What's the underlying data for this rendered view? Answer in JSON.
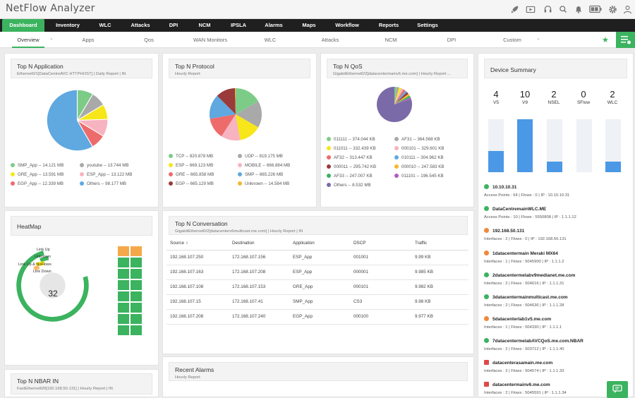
{
  "app": {
    "title": "NetFlow Analyzer"
  },
  "toolbar_icons": [
    "rocket-icon",
    "video-icon",
    "headset-icon",
    "search-icon",
    "bell-icon",
    "battery-icon",
    "gear-icon",
    "user-icon"
  ],
  "nav": [
    "Dashboard",
    "Inventory",
    "WLC",
    "Attacks",
    "DPI",
    "NCM",
    "IPSLA",
    "Alarms",
    "Maps",
    "Workflow",
    "Reports",
    "Settings"
  ],
  "subnav": [
    "Overview",
    "Apps",
    "Qos",
    "WAN Monitors",
    "WLC",
    "Attacks",
    "NCM",
    "DPI",
    "Custom"
  ],
  "subnav_chevron": "⌄",
  "app_panel": {
    "title": "Top N Application",
    "subtitle": "Ethernet0/1[DataCentreAVC HTTPHOST] | Daily Report | IN",
    "legend": [
      {
        "label": "SMP_App -- 14.121 MB",
        "color": "#7ccc87"
      },
      {
        "label": "youtube -- 13.744 MB",
        "color": "#a9a9a9"
      },
      {
        "label": "GRE_App -- 13.591 MB",
        "color": "#f6e61a"
      },
      {
        "label": "ESP_App -- 13.122 MB",
        "color": "#f7b3bf"
      },
      {
        "label": "EGP_App -- 12.339 MB",
        "color": "#ee6b6b"
      },
      {
        "label": "Others -- 98.177 MB",
        "color": "#5fa8e0"
      }
    ]
  },
  "protocol_panel": {
    "title": "Top N Protocol",
    "subtitle": "Hourly Report",
    "legend": [
      {
        "label": "TCP -- 820.878 MB",
        "color": "#7ccc87"
      },
      {
        "label": "UDP -- 819.175 MB",
        "color": "#a9a9a9"
      },
      {
        "label": "ESP -- 669.123 MB",
        "color": "#f6e61a"
      },
      {
        "label": "MOBILE -- 666.884 MB",
        "color": "#f7b3bf"
      },
      {
        "label": "GRE -- 665.858 MB",
        "color": "#ee6b6b"
      },
      {
        "label": "SMP -- 665.226 MB",
        "color": "#5fa8e0"
      },
      {
        "label": "EGP -- 665.129 MB",
        "color": "#9b3a3a"
      },
      {
        "label": "Unknown -- 14.584 MB",
        "color": "#f5b82e"
      }
    ]
  },
  "qos_panel": {
    "title": "Top N QoS",
    "subtitle": "GigabitEthernet0/2[datacentermainv6.me.com] | Hourly Report ...",
    "legend": [
      {
        "label": "011111 -- 374.044 KB",
        "color": "#7ccc87"
      },
      {
        "label": "AF31 -- 364.568 KB",
        "color": "#a9a9a9"
      },
      {
        "label": "011011 -- 332.439 KB",
        "color": "#f6e61a"
      },
      {
        "label": "000101 -- 329.601 KB",
        "color": "#f7b3bf"
      },
      {
        "label": "AF32 -- 313.447 KB",
        "color": "#ee6b6b"
      },
      {
        "label": "010111 -- 304.962 KB",
        "color": "#5fa8e0"
      },
      {
        "label": "000011 -- 295.742 KB",
        "color": "#9b3a3a"
      },
      {
        "label": "000010 -- 247.583 KB",
        "color": "#f5b82e"
      },
      {
        "label": "AF33 -- 247.007 KB",
        "color": "#3bb35f"
      },
      {
        "label": "011101 -- 196.545 KB",
        "color": "#b05cc0"
      },
      {
        "label": "Others -- 8.532 MB",
        "color": "#7b6aa8"
      }
    ]
  },
  "device_summary": {
    "title": "Device Summary",
    "counts": [
      {
        "n": "4",
        "label": "V5",
        "fill": 0.4
      },
      {
        "n": "10",
        "label": "V9",
        "fill": 1.0
      },
      {
        "n": "2",
        "label": "NSEL",
        "fill": 0.2
      },
      {
        "n": "0",
        "label": "SFlow",
        "fill": 0
      },
      {
        "n": "2",
        "label": "WLC",
        "fill": 0.2
      }
    ],
    "devices": [
      {
        "name": "10.10.10.31",
        "info": "Access Points : 64  |  Flows : 0  |  IP : 10.10.10.31",
        "icon": "wlc-icon",
        "color": "#3bb35f"
      },
      {
        "name": "DataCentremainWLC.ME",
        "info": "Access Points : 10  |  Flows : 5550808  |  IP : 1.1.1.12",
        "icon": "wlc-icon",
        "color": "#3bb35f"
      },
      {
        "name": "192.168.50.131",
        "info": "Interfaces : 2  |  Flows : 0  |  IP : 192.168.50.131",
        "icon": "router-icon",
        "color": "#f0883a"
      },
      {
        "name": "1datacentermain Meraki MX64",
        "info": "Interfaces : 1  |  Flows : 5045900  |  IP : 1.1.1.2",
        "icon": "router-icon",
        "color": "#f0883a"
      },
      {
        "name": "2datacentermelabv9medianet.me.com",
        "info": "Interfaces : 2  |  Flows : 504616  |  IP : 1.1.1.31",
        "icon": "wlc-icon",
        "color": "#3bb35f"
      },
      {
        "name": "3datacentermainmulticast.me.com",
        "info": "Interfaces : 2  |  Flows : 504636  |  IP : 1.1.1.28",
        "icon": "wlc-icon",
        "color": "#3bb35f"
      },
      {
        "name": "5datacenterlab1v5.me.com",
        "info": "Interfaces : 1  |  Flows : 504330  |  IP : 1.1.1.1",
        "icon": "router-icon",
        "color": "#f0883a"
      },
      {
        "name": "7datacentermelabAVCQoS.me.com.NBAR",
        "info": "Interfaces : 2  |  Flows : 503712  |  IP : 1.1.1.40",
        "icon": "wlc-icon",
        "color": "#3bb35f"
      },
      {
        "name": "datacenterasamain.me.com",
        "info": "Interfaces : 2  |  Flows : 504574  |  IP : 1.1.1.33",
        "icon": "firewall-icon",
        "color": "#e04848"
      },
      {
        "name": "datacentermainv6.me.com",
        "info": "Interfaces : 2  |  Flows : 5045591  |  IP : 1.1.1.34",
        "icon": "firewall-icon",
        "color": "#e04848"
      }
    ]
  },
  "heatmap": {
    "title": "HeatMap",
    "value": "32",
    "labels": [
      "Link Up",
      "Unknown",
      "Link Up & NoFlows",
      "Link Down"
    ]
  },
  "conversation": {
    "title": "Top N Conversation",
    "subtitle": "GigabitEthernet0/2[datacenterv6multicast.me.com] | Hourly Report | IN",
    "columns": [
      "Source",
      "Destination",
      "Application",
      "DSCP",
      "Traffic"
    ],
    "sort_indicator": "⇕",
    "rows": [
      [
        "192.168.107.250",
        "172.168.107.156",
        "ESP_App",
        "001001",
        "9.99 KB"
      ],
      [
        "192.168.107.163",
        "172.168.107.208",
        "ESP_App",
        "000001",
        "9.985 KB"
      ],
      [
        "192.168.107.108",
        "172.168.107.153",
        "GRE_App",
        "000101",
        "9.982 KB"
      ],
      [
        "192.168.107.15",
        "172.168.107.41",
        "SMP_App",
        "CS3",
        "9.98 KB"
      ],
      [
        "192.168.107.208",
        "172.168.107.240",
        "EGP_App",
        "000100",
        "9.977 KB"
      ]
    ]
  },
  "alarms": {
    "title": "Recent Alarms",
    "subtitle": "Hourly Report"
  },
  "nbar": {
    "title": "Top N NBAR IN",
    "subtitle": "FastEthernet0/0[192.168.50.131] | Hourly Report | IN"
  }
}
